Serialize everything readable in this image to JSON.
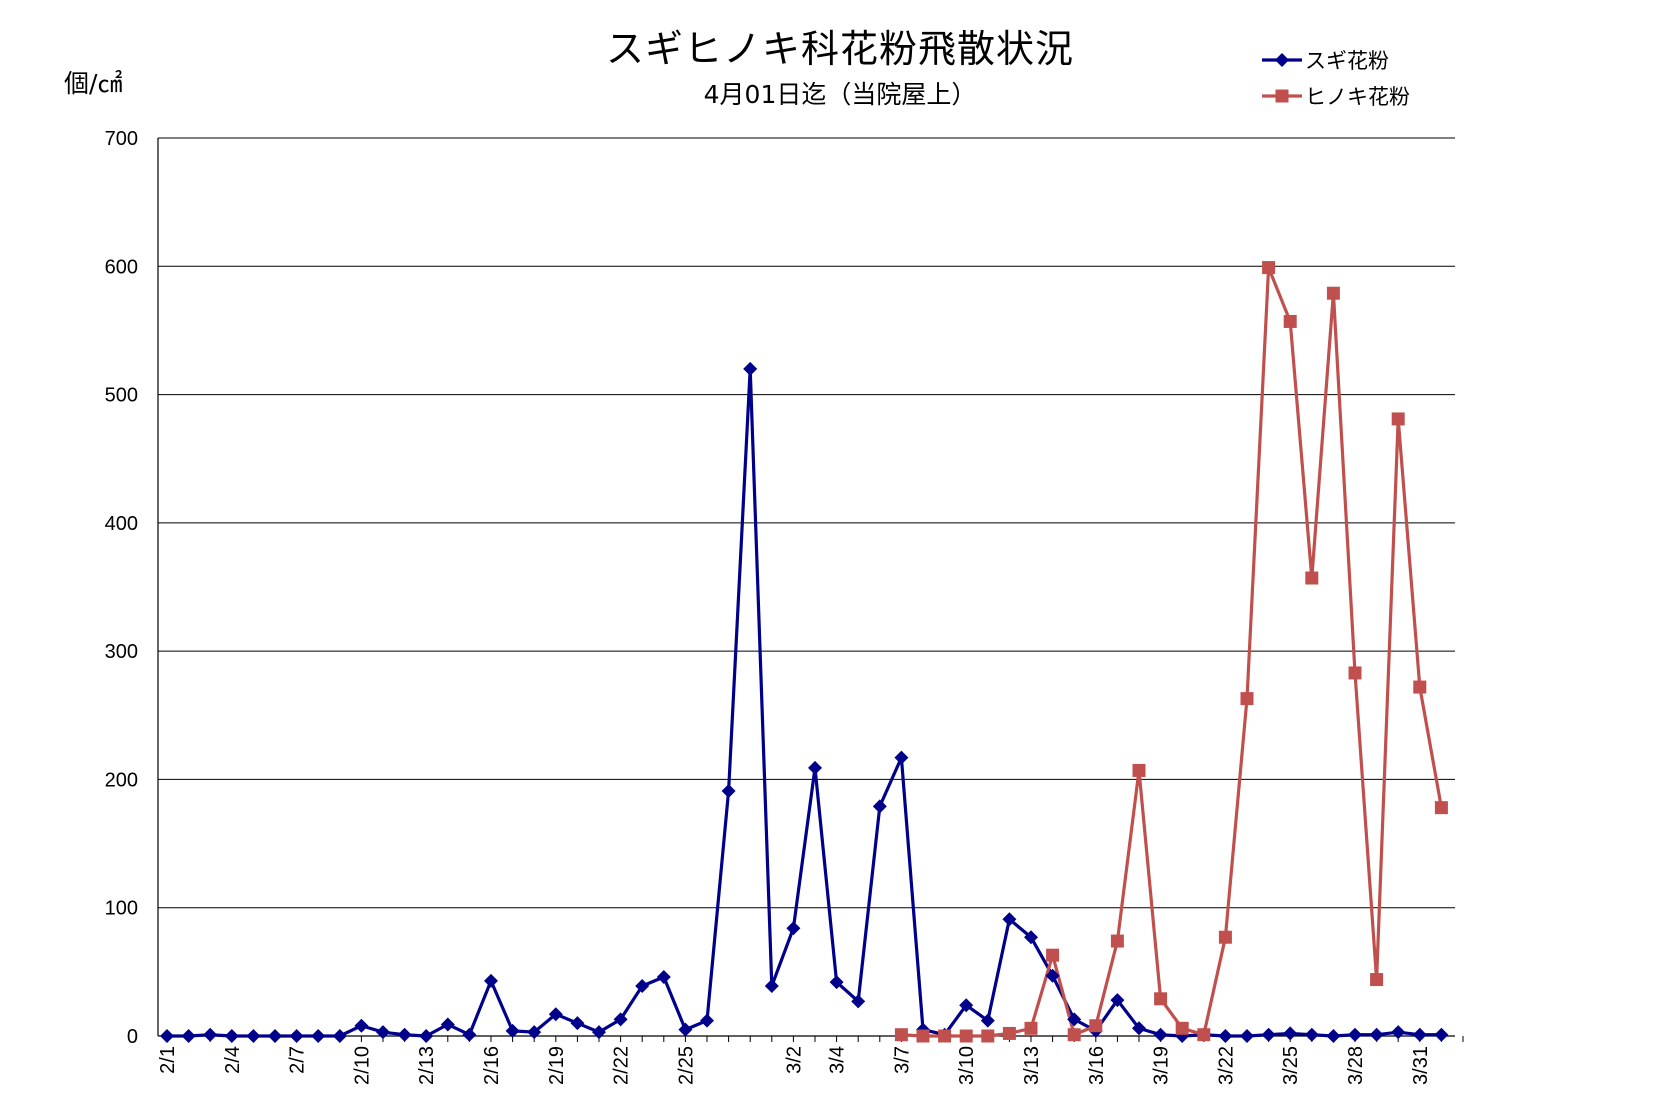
{
  "chart_data": {
    "type": "line",
    "title": "スギヒノキ科花粉飛散状況",
    "subtitle": "4月01日迄（当院屋上）",
    "ylabel": "個/㎠",
    "ylim": [
      0,
      700
    ],
    "yticks": [
      0,
      100,
      200,
      300,
      400,
      500,
      600,
      700
    ],
    "x_tick_labels": [
      "2/1",
      "2/4",
      "2/7",
      "2/10",
      "2/13",
      "2/16",
      "2/19",
      "2/22",
      "2/25",
      "3/2",
      "3/4",
      "3/7",
      "3/10",
      "3/13",
      "3/16",
      "3/19",
      "3/22",
      "3/25",
      "3/28",
      "3/31"
    ],
    "grid": true,
    "legend_position": "top-right",
    "series": [
      {
        "name": "スギ花粉",
        "color": "#00008B",
        "marker": "diamond",
        "values": [
          [
            "2/1",
            0
          ],
          [
            "2/2",
            0
          ],
          [
            "2/3",
            1
          ],
          [
            "2/4",
            0
          ],
          [
            "2/5",
            0
          ],
          [
            "2/6",
            0
          ],
          [
            "2/7",
            0
          ],
          [
            "2/8",
            0
          ],
          [
            "2/9",
            0
          ],
          [
            "2/10",
            8
          ],
          [
            "2/11",
            3
          ],
          [
            "2/12",
            1
          ],
          [
            "2/13",
            0
          ],
          [
            "2/14",
            9
          ],
          [
            "2/15",
            1
          ],
          [
            "2/16",
            43
          ],
          [
            "2/17",
            4
          ],
          [
            "2/18",
            3
          ],
          [
            "2/19",
            17
          ],
          [
            "2/20",
            10
          ],
          [
            "2/21",
            3
          ],
          [
            "2/22",
            13
          ],
          [
            "2/23",
            39
          ],
          [
            "2/24",
            46
          ],
          [
            "2/25",
            5
          ],
          [
            "2/26",
            12
          ],
          [
            "2/27",
            191
          ],
          [
            "2/28",
            520
          ],
          [
            "3/1",
            39
          ],
          [
            "3/2",
            84
          ],
          [
            "3/3",
            209
          ],
          [
            "3/4",
            42
          ],
          [
            "3/5",
            27
          ],
          [
            "3/6",
            179
          ],
          [
            "3/7",
            217
          ],
          [
            "3/8",
            5
          ],
          [
            "3/9",
            1
          ],
          [
            "3/10",
            24
          ],
          [
            "3/11",
            12
          ],
          [
            "3/12",
            91
          ],
          [
            "3/13",
            77
          ],
          [
            "3/14",
            47
          ],
          [
            "3/15",
            13
          ],
          [
            "3/16",
            4
          ],
          [
            "3/17",
            28
          ],
          [
            "3/18",
            6
          ],
          [
            "3/19",
            1
          ],
          [
            "3/20",
            0
          ],
          [
            "3/21",
            1
          ],
          [
            "3/22",
            0
          ],
          [
            "3/23",
            0
          ],
          [
            "3/24",
            1
          ],
          [
            "3/25",
            2
          ],
          [
            "3/26",
            1
          ],
          [
            "3/27",
            0
          ],
          [
            "3/28",
            1
          ],
          [
            "3/29",
            1
          ],
          [
            "3/30",
            3
          ],
          [
            "3/31",
            1
          ],
          [
            "4/1",
            1
          ]
        ]
      },
      {
        "name": "ヒノキ花粉",
        "color": "#C0504D",
        "marker": "square",
        "values": [
          [
            "3/7",
            1
          ],
          [
            "3/8",
            0
          ],
          [
            "3/9",
            0
          ],
          [
            "3/10",
            0
          ],
          [
            "3/11",
            0
          ],
          [
            "3/12",
            2
          ],
          [
            "3/13",
            6
          ],
          [
            "3/14",
            63
          ],
          [
            "3/15",
            1
          ],
          [
            "3/16",
            8
          ],
          [
            "3/17",
            74
          ],
          [
            "3/18",
            207
          ],
          [
            "3/19",
            29
          ],
          [
            "3/20",
            6
          ],
          [
            "3/21",
            1
          ],
          [
            "3/22",
            77
          ],
          [
            "3/23",
            263
          ],
          [
            "3/24",
            599
          ],
          [
            "3/25",
            557
          ],
          [
            "3/26",
            357
          ],
          [
            "3/27",
            579
          ],
          [
            "3/28",
            283
          ],
          [
            "3/29",
            44
          ],
          [
            "3/30",
            481
          ],
          [
            "3/31",
            272
          ],
          [
            "4/1",
            178
          ]
        ]
      }
    ]
  }
}
